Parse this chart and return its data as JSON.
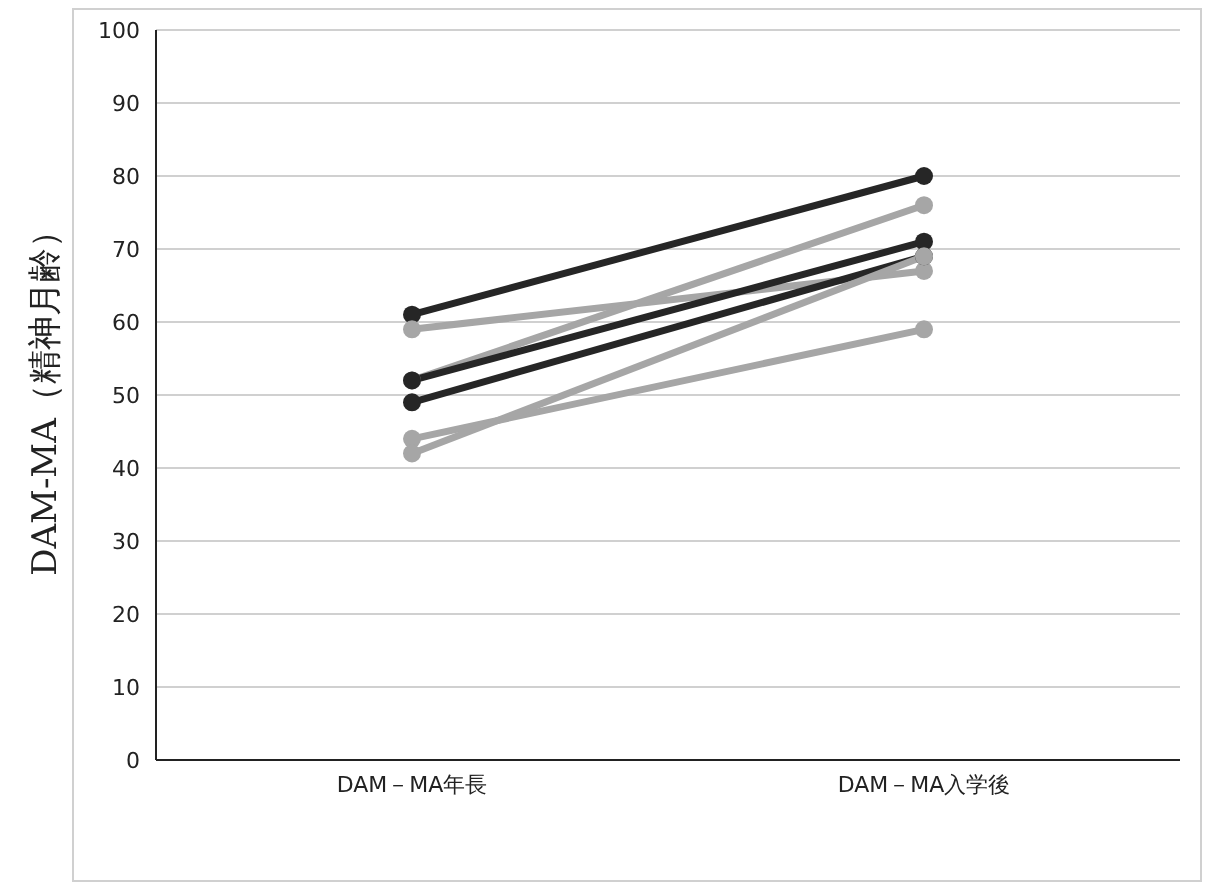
{
  "chart_data": {
    "type": "line",
    "ylabel": "DAM-MA（精神月齢）",
    "categories": [
      "DAM－MA年長",
      "DAM－MA入学後"
    ],
    "series": [
      {
        "color": "#262626",
        "values": [
          61,
          80
        ]
      },
      {
        "color": "#a6a6a6",
        "values": [
          59,
          67
        ]
      },
      {
        "color": "#a6a6a6",
        "values": [
          52,
          76
        ]
      },
      {
        "color": "#262626",
        "values": [
          52,
          71
        ]
      },
      {
        "color": "#262626",
        "values": [
          49,
          69
        ]
      },
      {
        "color": "#a6a6a6",
        "values": [
          44,
          59
        ]
      },
      {
        "color": "#a6a6a6",
        "values": [
          42,
          69
        ]
      }
    ],
    "ylim": [
      0,
      100
    ],
    "yticks": [
      0,
      10,
      20,
      30,
      40,
      50,
      60,
      70,
      80,
      90,
      100
    ],
    "grid": "y",
    "legend": false,
    "marker": "circle",
    "line_style": "solid"
  }
}
